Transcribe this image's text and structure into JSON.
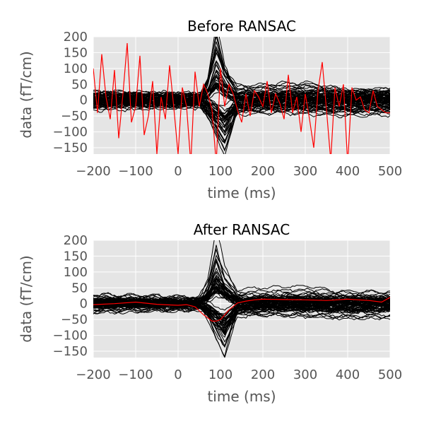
{
  "chart_data": [
    {
      "type": "line",
      "title": "Before RANSAC",
      "xlabel": "time (ms)",
      "ylabel": "data (fT/cm)",
      "xlim": [
        -200,
        500
      ],
      "ylim": [
        -170,
        200
      ],
      "xticks": [
        -200,
        -100,
        0,
        100,
        200,
        300,
        400,
        500
      ],
      "yticks": [
        -150,
        -100,
        -50,
        0,
        50,
        100,
        150,
        200
      ],
      "grid": true,
      "legend": "none",
      "background_color": "#e5e5e5",
      "trace_color": "#000000",
      "highlight_color": "#ff0000",
      "channel_traces": [
        {
          "x": [
            -200,
            -100,
            0,
            50,
            70,
            90,
            110,
            140,
            200,
            300,
            400,
            500
          ],
          "y": [
            5,
            8,
            2,
            -5,
            60,
            200,
            90,
            20,
            10,
            5,
            8,
            6
          ]
        },
        {
          "x": [
            -200,
            -100,
            0,
            50,
            70,
            90,
            110,
            140,
            200,
            300,
            400,
            500
          ],
          "y": [
            -3,
            2,
            -4,
            5,
            -40,
            -100,
            -150,
            -20,
            -5,
            -8,
            -10,
            -5
          ]
        },
        {
          "x": [
            -200,
            -100,
            0,
            50,
            70,
            90,
            110,
            140,
            200,
            300,
            400,
            500
          ],
          "y": [
            12,
            10,
            8,
            6,
            45,
            120,
            70,
            25,
            30,
            35,
            15,
            20
          ]
        },
        {
          "x": [
            -200,
            -100,
            0,
            50,
            70,
            90,
            110,
            140,
            200,
            300,
            400,
            500
          ],
          "y": [
            -10,
            -6,
            -8,
            -3,
            -30,
            -70,
            -110,
            -30,
            -25,
            -20,
            -28,
            -22
          ]
        },
        {
          "x": [
            -200,
            -100,
            0,
            50,
            70,
            90,
            110,
            140,
            200,
            300,
            400,
            500
          ],
          "y": [
            18,
            15,
            12,
            10,
            30,
            80,
            45,
            20,
            25,
            30,
            28,
            25
          ]
        },
        {
          "x": [
            -200,
            -100,
            0,
            50,
            70,
            90,
            110,
            140,
            200,
            300,
            400,
            500
          ],
          "y": [
            -15,
            -12,
            -10,
            -8,
            -20,
            -50,
            -60,
            -15,
            -20,
            -25,
            -30,
            -28
          ]
        },
        {
          "x": [
            -200,
            -100,
            0,
            50,
            70,
            90,
            110,
            140,
            200,
            300,
            400,
            500
          ],
          "y": [
            0,
            3,
            -2,
            2,
            20,
            60,
            30,
            5,
            0,
            -3,
            2,
            0
          ]
        },
        {
          "x": [
            -200,
            -100,
            0,
            50,
            70,
            90,
            110,
            140,
            200,
            300,
            400,
            500
          ],
          "y": [
            8,
            5,
            6,
            4,
            -15,
            -40,
            -85,
            -10,
            5,
            8,
            6,
            10
          ]
        }
      ],
      "bad_channel": {
        "x": [
          -200,
          -190,
          -180,
          -170,
          -160,
          -150,
          -140,
          -130,
          -120,
          -110,
          -100,
          -90,
          -80,
          -70,
          -60,
          -50,
          -40,
          -30,
          -20,
          -10,
          0,
          10,
          20,
          30,
          40,
          50,
          60,
          70,
          80,
          90,
          100,
          110,
          120,
          130,
          140,
          150,
          160,
          170,
          180,
          190,
          200,
          210,
          220,
          230,
          240,
          250,
          260,
          270,
          280,
          290,
          300,
          310,
          320,
          330,
          340,
          350,
          360,
          370,
          380,
          390,
          400,
          410,
          420,
          430,
          440,
          450,
          460,
          470,
          480,
          490,
          500
        ],
        "y": [
          100,
          -40,
          145,
          10,
          -60,
          95,
          -120,
          20,
          180,
          -70,
          -20,
          140,
          -110,
          -50,
          60,
          -170,
          10,
          -60,
          110,
          -25,
          -170,
          40,
          -20,
          -200,
          90,
          -20,
          50,
          20,
          -30,
          -200,
          100,
          -20,
          50,
          20,
          -30,
          -70,
          20,
          -50,
          30,
          10,
          -20,
          60,
          -40,
          20,
          -10,
          -60,
          80,
          -40,
          10,
          -100,
          20,
          -60,
          -150,
          30,
          120,
          -30,
          -190,
          40,
          -20,
          50,
          -200,
          40,
          0,
          10,
          -30,
          -40,
          30,
          -20,
          -30,
          -40,
          -40
        ]
      }
    },
    {
      "type": "line",
      "title": "After RANSAC",
      "xlabel": "time (ms)",
      "ylabel": "data (fT/cm)",
      "xlim": [
        -200,
        500
      ],
      "ylim": [
        -170,
        200
      ],
      "xticks": [
        -200,
        -100,
        0,
        100,
        200,
        300,
        400,
        500
      ],
      "yticks": [
        -150,
        -100,
        -50,
        0,
        50,
        100,
        150,
        200
      ],
      "grid": true,
      "legend": "none",
      "background_color": "#e5e5e5",
      "trace_color": "#000000",
      "highlight_color": "#ff0000",
      "channel_traces": [
        {
          "x": [
            -200,
            -100,
            0,
            50,
            70,
            90,
            110,
            140,
            200,
            300,
            400,
            500
          ],
          "y": [
            5,
            8,
            2,
            -5,
            60,
            200,
            90,
            20,
            10,
            5,
            8,
            6
          ]
        },
        {
          "x": [
            -200,
            -100,
            0,
            50,
            70,
            90,
            110,
            140,
            200,
            300,
            400,
            500
          ],
          "y": [
            -3,
            2,
            -4,
            5,
            -40,
            -100,
            -150,
            -20,
            -5,
            -8,
            -10,
            -5
          ]
        },
        {
          "x": [
            -200,
            -100,
            0,
            50,
            70,
            90,
            110,
            140,
            200,
            300,
            400,
            500
          ],
          "y": [
            12,
            10,
            8,
            6,
            45,
            120,
            70,
            25,
            30,
            35,
            15,
            20
          ]
        },
        {
          "x": [
            -200,
            -100,
            0,
            50,
            70,
            90,
            110,
            140,
            200,
            300,
            400,
            500
          ],
          "y": [
            -10,
            -6,
            -8,
            -3,
            -30,
            -70,
            -110,
            -30,
            -25,
            -20,
            -28,
            -22
          ]
        },
        {
          "x": [
            -200,
            -100,
            0,
            50,
            70,
            90,
            110,
            140,
            200,
            300,
            400,
            500
          ],
          "y": [
            18,
            15,
            12,
            10,
            30,
            80,
            45,
            20,
            25,
            30,
            28,
            25
          ]
        },
        {
          "x": [
            -200,
            -100,
            0,
            50,
            70,
            90,
            110,
            140,
            200,
            300,
            400,
            500
          ],
          "y": [
            -15,
            -12,
            -10,
            -8,
            -20,
            -50,
            -60,
            -15,
            -20,
            -25,
            -30,
            -28
          ]
        },
        {
          "x": [
            -200,
            -100,
            0,
            50,
            70,
            90,
            110,
            140,
            200,
            300,
            400,
            500
          ],
          "y": [
            0,
            3,
            -2,
            2,
            20,
            60,
            30,
            5,
            0,
            -3,
            2,
            0
          ]
        },
        {
          "x": [
            -200,
            -100,
            0,
            50,
            70,
            90,
            110,
            140,
            200,
            300,
            400,
            500
          ],
          "y": [
            8,
            5,
            6,
            4,
            -15,
            -40,
            -85,
            -10,
            5,
            8,
            6,
            10
          ]
        }
      ],
      "bad_channel": {
        "x": [
          -200,
          -150,
          -100,
          -50,
          -20,
          0,
          20,
          40,
          60,
          80,
          90,
          100,
          120,
          140,
          160,
          180,
          200,
          250,
          300,
          350,
          400,
          450,
          480,
          500
        ],
        "y": [
          -3,
          0,
          5,
          -2,
          -4,
          -5,
          -3,
          -10,
          -35,
          -55,
          -55,
          -50,
          -20,
          2,
          8,
          12,
          14,
          13,
          12,
          10,
          14,
          10,
          5,
          20
        ]
      }
    }
  ]
}
